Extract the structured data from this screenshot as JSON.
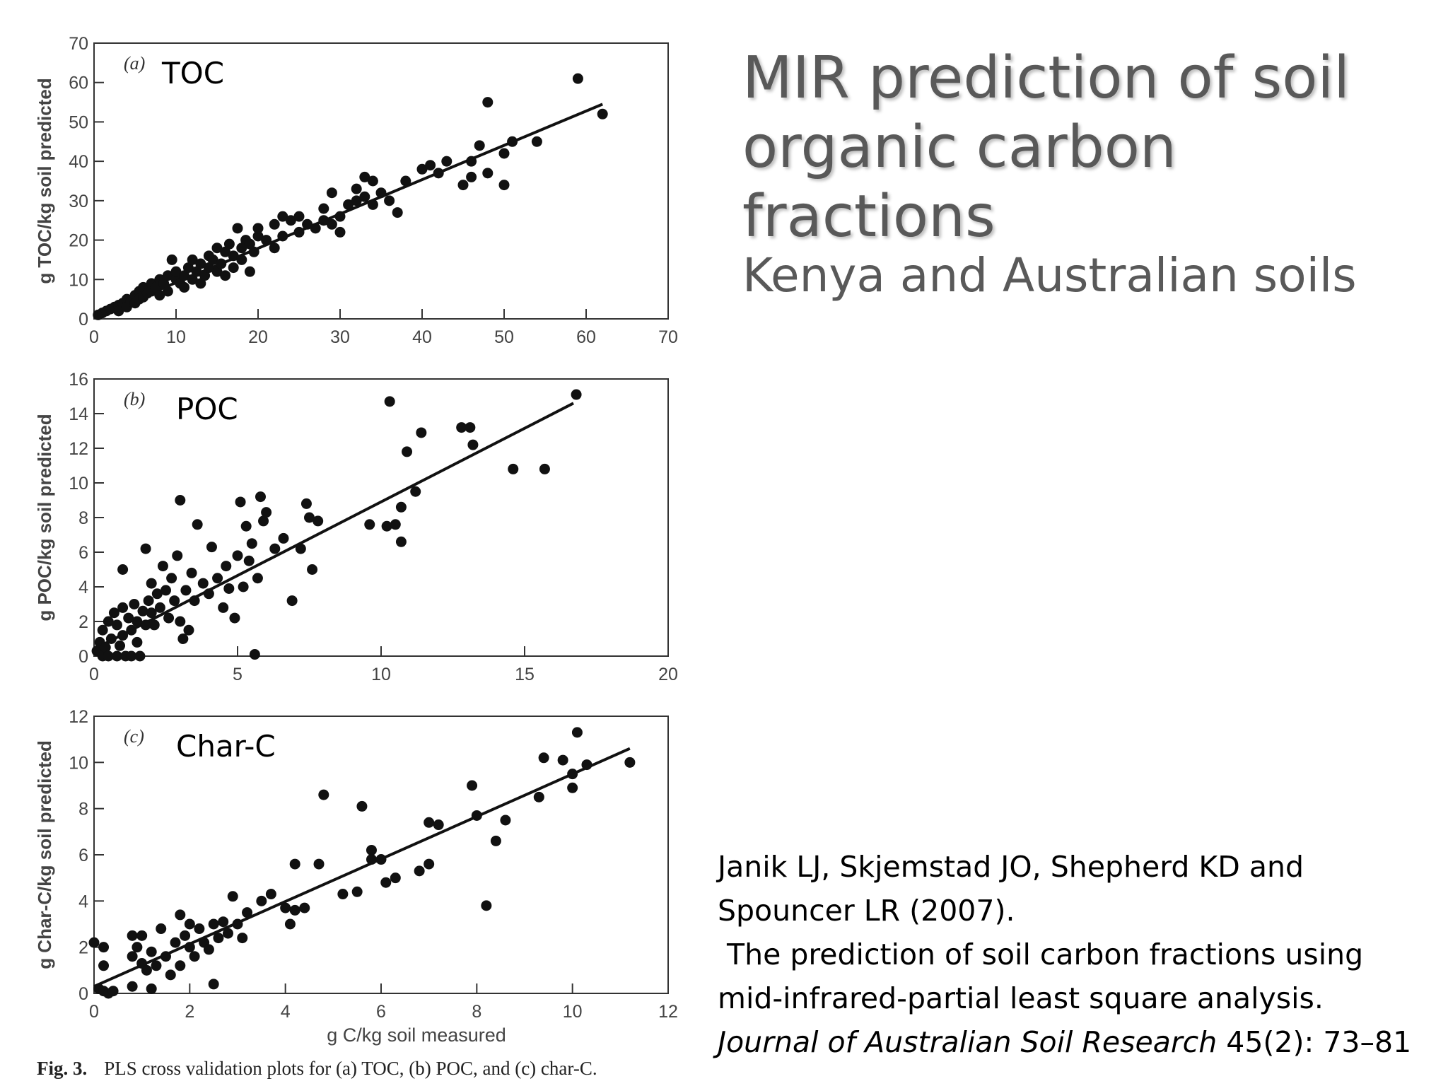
{
  "slide": {
    "title_line1": "MIR prediction of soil",
    "title_line2": "organic carbon fractions",
    "subtitle": "Kenya and Australian soils"
  },
  "citation": {
    "line1": "Janik LJ, Skjemstad JO, Shepherd KD and",
    "line2": "Spouncer LR (2007).",
    "line3": " The prediction of soil carbon fractions using",
    "line4": "mid-infrared-partial least square analysis.",
    "journal": "Journal of Australian Soil Research",
    "volume": " 45(2): 73–81"
  },
  "caption": {
    "label": "Fig. 3.",
    "text": "PLS cross validation plots for (a) TOC, (b) POC, and (c) char-C."
  },
  "chart_data": [
    {
      "type": "scatter",
      "panel_tag": "(a)",
      "title": "TOC",
      "xlabel": "",
      "ylabel": "g TOC/kg soil predicted",
      "xlim": [
        0,
        70
      ],
      "ylim": [
        0,
        70
      ],
      "xticks": [
        0,
        10,
        20,
        30,
        40,
        50,
        60,
        70
      ],
      "yticks": [
        0,
        10,
        20,
        30,
        40,
        50,
        60,
        70
      ],
      "grid": false,
      "fit_line": [
        [
          0,
          0.5
        ],
        [
          62,
          54.5
        ]
      ],
      "points": [
        [
          0.5,
          1
        ],
        [
          1,
          1.5
        ],
        [
          1.5,
          2
        ],
        [
          2,
          2.5
        ],
        [
          2.5,
          3
        ],
        [
          3,
          3.5
        ],
        [
          3,
          2
        ],
        [
          3.5,
          4
        ],
        [
          4,
          5
        ],
        [
          4,
          3
        ],
        [
          4.5,
          4.5
        ],
        [
          5,
          6
        ],
        [
          5,
          4
        ],
        [
          5.5,
          7
        ],
        [
          5.5,
          5
        ],
        [
          6,
          8
        ],
        [
          6,
          5.5
        ],
        [
          6.5,
          6.5
        ],
        [
          7,
          7
        ],
        [
          7,
          9
        ],
        [
          7.5,
          8
        ],
        [
          8,
          6
        ],
        [
          8,
          10
        ],
        [
          8.5,
          9
        ],
        [
          9,
          11
        ],
        [
          9,
          7
        ],
        [
          9.5,
          15
        ],
        [
          10,
          10
        ],
        [
          10,
          12
        ],
        [
          10.5,
          9
        ],
        [
          11,
          11
        ],
        [
          11,
          8
        ],
        [
          11.5,
          13
        ],
        [
          12,
          10
        ],
        [
          12,
          15
        ],
        [
          12.5,
          12
        ],
        [
          13,
          14
        ],
        [
          13,
          9
        ],
        [
          13.5,
          11
        ],
        [
          14,
          13
        ],
        [
          14,
          16
        ],
        [
          14.5,
          15
        ],
        [
          15,
          12
        ],
        [
          15,
          18
        ],
        [
          15.5,
          14
        ],
        [
          16,
          17
        ],
        [
          16,
          11
        ],
        [
          16.5,
          19
        ],
        [
          17,
          16
        ],
        [
          17,
          13
        ],
        [
          17.5,
          23
        ],
        [
          18,
          18
        ],
        [
          18,
          15
        ],
        [
          18.5,
          20
        ],
        [
          19,
          19
        ],
        [
          19,
          12
        ],
        [
          19.5,
          17
        ],
        [
          20,
          21
        ],
        [
          20,
          23
        ],
        [
          21,
          20
        ],
        [
          22,
          18
        ],
        [
          22,
          24
        ],
        [
          23,
          21
        ],
        [
          23,
          26
        ],
        [
          24,
          25
        ],
        [
          25,
          22
        ],
        [
          25,
          26
        ],
        [
          26,
          24
        ],
        [
          27,
          23
        ],
        [
          28,
          25
        ],
        [
          28,
          28
        ],
        [
          29,
          32
        ],
        [
          29,
          24
        ],
        [
          30,
          22
        ],
        [
          30,
          26
        ],
        [
          31,
          29
        ],
        [
          32,
          33
        ],
        [
          32,
          30
        ],
        [
          33,
          31
        ],
        [
          33,
          36
        ],
        [
          34,
          29
        ],
        [
          34,
          35
        ],
        [
          35,
          32
        ],
        [
          36,
          30
        ],
        [
          37,
          27
        ],
        [
          38,
          35
        ],
        [
          40,
          38
        ],
        [
          41,
          39
        ],
        [
          42,
          37
        ],
        [
          43,
          40
        ],
        [
          45,
          34
        ],
        [
          46,
          36
        ],
        [
          46,
          40
        ],
        [
          47,
          44
        ],
        [
          48,
          37
        ],
        [
          48,
          55
        ],
        [
          50,
          42
        ],
        [
          50,
          34
        ],
        [
          51,
          45
        ],
        [
          54,
          45
        ],
        [
          59,
          61
        ],
        [
          62,
          52
        ]
      ]
    },
    {
      "type": "scatter",
      "panel_tag": "(b)",
      "title": "POC",
      "xlabel": "",
      "ylabel": "g POC/kg soil predicted",
      "xlim": [
        0,
        20
      ],
      "ylim": [
        0,
        16
      ],
      "xticks": [
        0,
        5,
        10,
        15,
        20
      ],
      "yticks": [
        0,
        2,
        4,
        6,
        8,
        10,
        12,
        14,
        16
      ],
      "grid": false,
      "fit_line": [
        [
          0,
          0.4
        ],
        [
          16.7,
          14.6
        ]
      ],
      "points": [
        [
          0.1,
          0.3
        ],
        [
          0.2,
          0.8
        ],
        [
          0.3,
          0
        ],
        [
          0.3,
          1.5
        ],
        [
          0.4,
          0.5
        ],
        [
          0.5,
          2
        ],
        [
          0.5,
          0
        ],
        [
          0.6,
          1
        ],
        [
          0.7,
          2.5
        ],
        [
          0.8,
          0
        ],
        [
          0.8,
          1.8
        ],
        [
          0.9,
          0.6
        ],
        [
          1,
          2.8
        ],
        [
          1,
          1.2
        ],
        [
          1,
          5
        ],
        [
          1.1,
          0
        ],
        [
          1.2,
          2.2
        ],
        [
          1.3,
          1.5
        ],
        [
          1.3,
          0
        ],
        [
          1.4,
          3
        ],
        [
          1.5,
          2
        ],
        [
          1.5,
          0.8
        ],
        [
          1.6,
          0
        ],
        [
          1.7,
          2.6
        ],
        [
          1.8,
          1.8
        ],
        [
          1.8,
          6.2
        ],
        [
          1.9,
          3.2
        ],
        [
          2,
          2.5
        ],
        [
          2,
          4.2
        ],
        [
          2.1,
          1.8
        ],
        [
          2.2,
          3.6
        ],
        [
          2.3,
          2.8
        ],
        [
          2.4,
          5.2
        ],
        [
          2.5,
          3.8
        ],
        [
          2.6,
          2.2
        ],
        [
          2.7,
          4.5
        ],
        [
          2.8,
          3.2
        ],
        [
          2.9,
          5.8
        ],
        [
          3,
          2
        ],
        [
          3,
          9
        ],
        [
          3.1,
          1
        ],
        [
          3.2,
          3.8
        ],
        [
          3.3,
          1.5
        ],
        [
          3.4,
          4.8
        ],
        [
          3.5,
          3.2
        ],
        [
          3.6,
          7.6
        ],
        [
          3.8,
          4.2
        ],
        [
          4,
          3.6
        ],
        [
          4.1,
          6.3
        ],
        [
          4.3,
          4.5
        ],
        [
          4.5,
          2.8
        ],
        [
          4.6,
          5.2
        ],
        [
          4.7,
          3.9
        ],
        [
          4.9,
          2.2
        ],
        [
          5,
          5.8
        ],
        [
          5.1,
          8.9
        ],
        [
          5.2,
          4
        ],
        [
          5.3,
          7.5
        ],
        [
          5.4,
          5.5
        ],
        [
          5.5,
          6.5
        ],
        [
          5.6,
          0.1
        ],
        [
          5.7,
          4.5
        ],
        [
          5.8,
          9.2
        ],
        [
          5.9,
          7.8
        ],
        [
          6,
          8.3
        ],
        [
          6.3,
          6.2
        ],
        [
          6.6,
          6.8
        ],
        [
          6.9,
          3.2
        ],
        [
          7.2,
          6.2
        ],
        [
          7.4,
          8.8
        ],
        [
          7.5,
          8
        ],
        [
          7.6,
          5
        ],
        [
          7.8,
          7.8
        ],
        [
          9.6,
          7.6
        ],
        [
          10.2,
          7.5
        ],
        [
          10.3,
          14.7
        ],
        [
          10.5,
          7.6
        ],
        [
          10.7,
          8.6
        ],
        [
          10.7,
          6.6
        ],
        [
          10.9,
          11.8
        ],
        [
          11.2,
          9.5
        ],
        [
          11.4,
          12.9
        ],
        [
          12.8,
          13.2
        ],
        [
          13.1,
          13.2
        ],
        [
          13.2,
          12.2
        ],
        [
          14.6,
          10.8
        ],
        [
          15.7,
          10.8
        ],
        [
          16.8,
          15.1
        ]
      ]
    },
    {
      "type": "scatter",
      "panel_tag": "(c)",
      "title": "Char-C",
      "xlabel": "g C/kg soil measured",
      "ylabel": "g Char-C/kg soil predicted",
      "xlim": [
        0,
        12
      ],
      "ylim": [
        0,
        12
      ],
      "xticks": [
        0,
        2,
        4,
        6,
        8,
        10,
        12
      ],
      "yticks": [
        0,
        2,
        4,
        6,
        8,
        10,
        12
      ],
      "grid": false,
      "fit_line": [
        [
          0,
          0.3
        ],
        [
          11.2,
          10.6
        ]
      ],
      "points": [
        [
          0,
          2.2
        ],
        [
          0.1,
          0.2
        ],
        [
          0.2,
          0.1
        ],
        [
          0.2,
          1.2
        ],
        [
          0.2,
          2
        ],
        [
          0.3,
          0
        ],
        [
          0.4,
          0.1
        ],
        [
          0.8,
          0.3
        ],
        [
          0.8,
          1.6
        ],
        [
          0.8,
          2.5
        ],
        [
          0.9,
          2
        ],
        [
          1,
          1.3
        ],
        [
          1,
          2.5
        ],
        [
          1.1,
          1
        ],
        [
          1.2,
          1.8
        ],
        [
          1.2,
          0.2
        ],
        [
          1.3,
          1.2
        ],
        [
          1.4,
          2.8
        ],
        [
          1.5,
          1.6
        ],
        [
          1.6,
          0.8
        ],
        [
          1.7,
          2.2
        ],
        [
          1.8,
          3.4
        ],
        [
          1.8,
          1.2
        ],
        [
          1.9,
          2.5
        ],
        [
          2,
          2
        ],
        [
          2,
          3
        ],
        [
          2.1,
          1.6
        ],
        [
          2.2,
          2.8
        ],
        [
          2.3,
          2.2
        ],
        [
          2.4,
          1.9
        ],
        [
          2.5,
          3
        ],
        [
          2.5,
          0.4
        ],
        [
          2.6,
          2.4
        ],
        [
          2.7,
          3.1
        ],
        [
          2.8,
          2.6
        ],
        [
          2.9,
          4.2
        ],
        [
          3,
          3
        ],
        [
          3.1,
          2.4
        ],
        [
          3.2,
          3.5
        ],
        [
          3.5,
          4
        ],
        [
          3.7,
          4.3
        ],
        [
          4,
          3.7
        ],
        [
          4.1,
          3
        ],
        [
          4.2,
          3.6
        ],
        [
          4.2,
          5.6
        ],
        [
          4.4,
          3.7
        ],
        [
          4.7,
          5.6
        ],
        [
          4.8,
          8.6
        ],
        [
          5.2,
          4.3
        ],
        [
          5.5,
          4.4
        ],
        [
          5.6,
          8.1
        ],
        [
          5.8,
          6.2
        ],
        [
          5.8,
          5.8
        ],
        [
          6,
          5.8
        ],
        [
          6.1,
          4.8
        ],
        [
          6.3,
          5
        ],
        [
          6.8,
          5.3
        ],
        [
          7,
          5.6
        ],
        [
          7,
          7.4
        ],
        [
          7.2,
          7.3
        ],
        [
          7.9,
          9
        ],
        [
          8,
          7.7
        ],
        [
          8.2,
          3.8
        ],
        [
          8.4,
          6.6
        ],
        [
          8.6,
          7.5
        ],
        [
          9.3,
          8.5
        ],
        [
          9.4,
          10.2
        ],
        [
          9.8,
          10.1
        ],
        [
          10,
          8.9
        ],
        [
          10,
          9.5
        ],
        [
          10.1,
          11.3
        ],
        [
          10.3,
          9.9
        ],
        [
          11.2,
          10
        ]
      ]
    }
  ]
}
